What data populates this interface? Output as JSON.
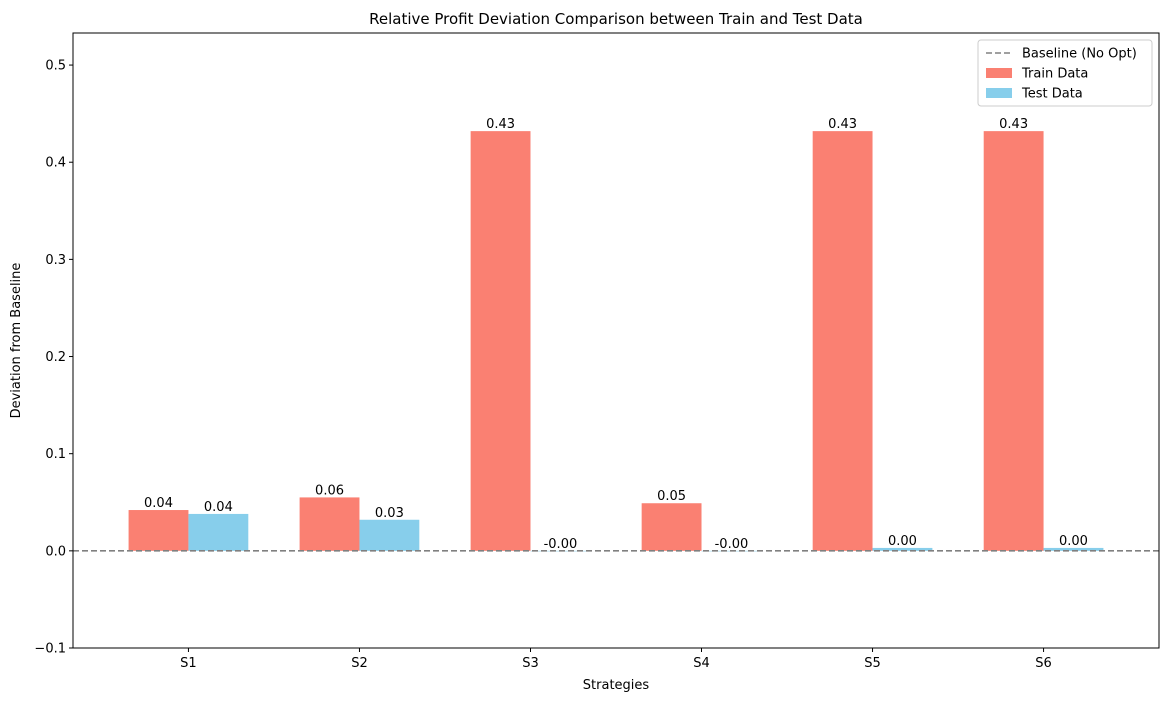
{
  "chart_data": {
    "type": "bar",
    "title": "Relative Profit Deviation Comparison between Train and Test Data",
    "xlabel": "Strategies",
    "ylabel": "Deviation from Baseline",
    "categories": [
      "S1",
      "S2",
      "S3",
      "S4",
      "S5",
      "S6"
    ],
    "ylim": [
      -0.1,
      0.533
    ],
    "yticks": [
      -0.1,
      0.0,
      0.1,
      0.2,
      0.3,
      0.4,
      0.5
    ],
    "ytick_labels": [
      "−0.1",
      "0.0",
      "0.1",
      "0.2",
      "0.3",
      "0.4",
      "0.5"
    ],
    "series": [
      {
        "name": "Train Data",
        "color": "#fa8072",
        "values": [
          0.042,
          0.055,
          0.432,
          0.049,
          0.432,
          0.432
        ],
        "labels": [
          "0.04",
          "0.06",
          "0.43",
          "0.05",
          "0.43",
          "0.43"
        ]
      },
      {
        "name": "Test Data",
        "color": "#87ceeb",
        "values": [
          0.038,
          0.032,
          -0.0005,
          -0.0005,
          0.003,
          0.003
        ],
        "labels": [
          "0.04",
          "0.03",
          "-0.00",
          "-0.00",
          "0.00",
          "0.00"
        ]
      }
    ],
    "baseline": {
      "name": "Baseline (No Opt)",
      "value": 0.0,
      "color": "#808080"
    },
    "legend_position": "top-right",
    "grid": false
  }
}
